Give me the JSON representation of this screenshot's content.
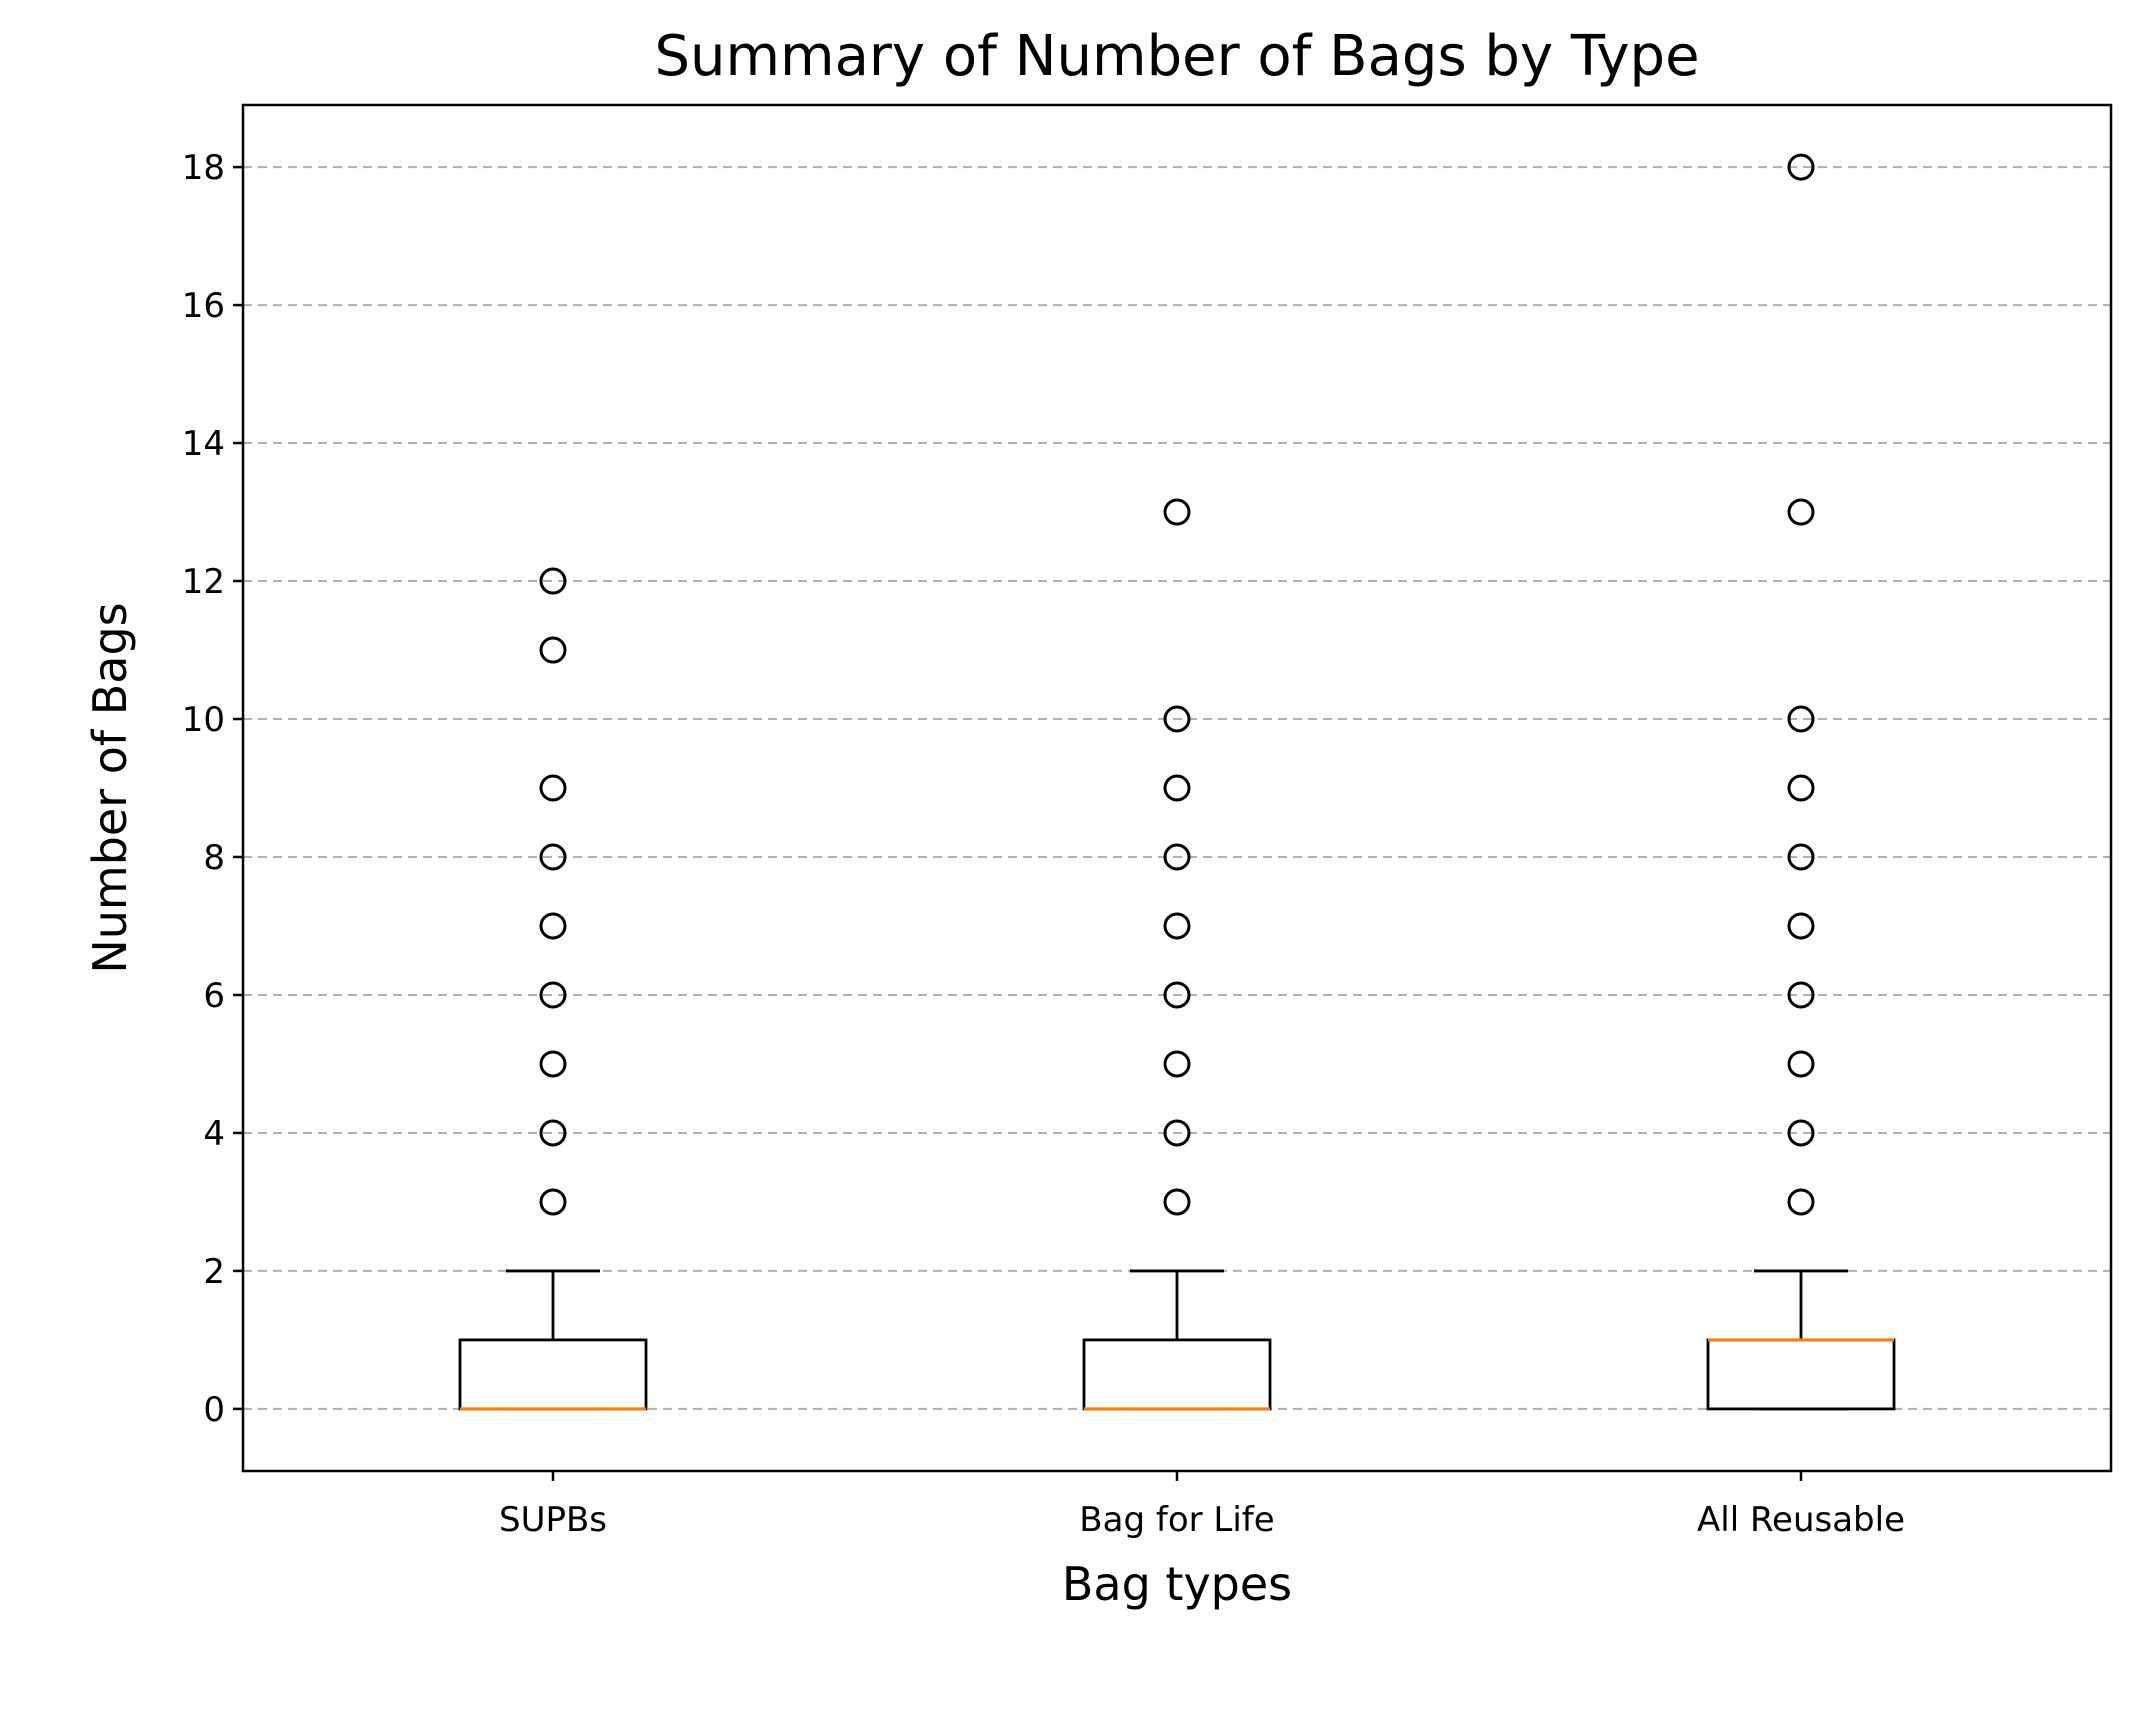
{
  "chart_data": {
    "type": "box",
    "title": "Summary of Number of Bags by Type",
    "xlabel": "Bag types",
    "ylabel": "Number of Bags",
    "ylim": [
      -0.9,
      18.9
    ],
    "yticks": [
      0,
      2,
      4,
      6,
      8,
      10,
      12,
      14,
      16,
      18
    ],
    "grid": {
      "axis": "y",
      "style": "dashed"
    },
    "categories": [
      "SUPBs",
      "Bag for Life",
      "All Reusable"
    ],
    "boxes": [
      {
        "category": "SUPBs",
        "q1": 0,
        "median": 0,
        "q3": 1,
        "whisker_low": 0,
        "whisker_high": 2,
        "outliers": [
          3,
          4,
          5,
          6,
          7,
          8,
          9,
          11,
          12
        ]
      },
      {
        "category": "Bag for Life",
        "q1": 0,
        "median": 0,
        "q3": 1,
        "whisker_low": 0,
        "whisker_high": 2,
        "outliers": [
          3,
          4,
          5,
          6,
          7,
          8,
          9,
          10,
          13
        ]
      },
      {
        "category": "All Reusable",
        "q1": 0,
        "median": 1,
        "q3": 1,
        "whisker_low": 0,
        "whisker_high": 2,
        "outliers": [
          3,
          4,
          5,
          6,
          7,
          8,
          9,
          10,
          13,
          18
        ]
      }
    ],
    "colors": {
      "box": "#000000",
      "median": "#ff7f0e",
      "grid": "#b0b0b0"
    }
  }
}
